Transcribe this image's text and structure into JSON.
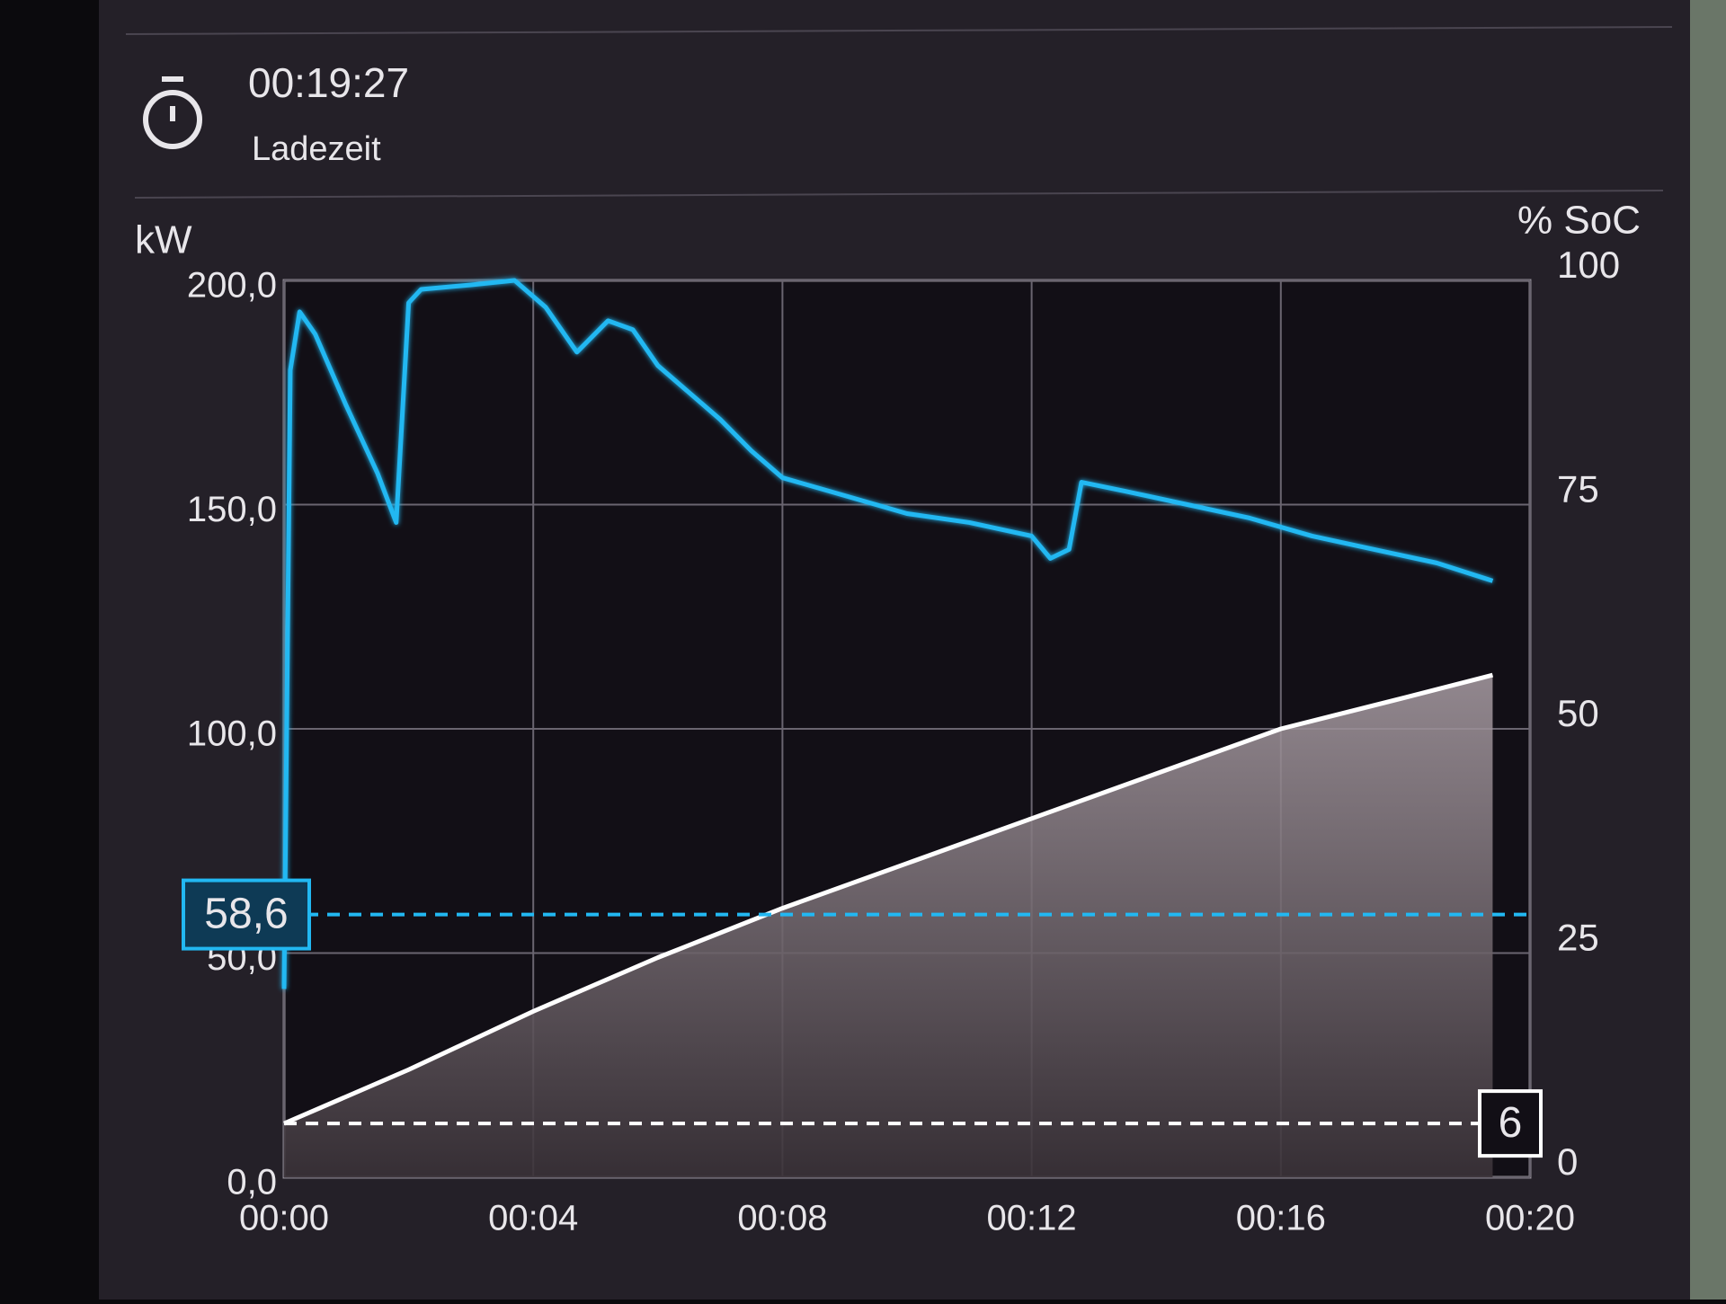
{
  "header": {
    "time": "00:19:27",
    "time_label": "Ladezeit"
  },
  "chart_data": {
    "type": "line",
    "ylabel": "kW",
    "y2label": "% SoC",
    "xlim": [
      0,
      20
    ],
    "xticks": [
      {
        "value": 0,
        "label": "00:00"
      },
      {
        "value": 4,
        "label": "00:04"
      },
      {
        "value": 8,
        "label": "00:08"
      },
      {
        "value": 12,
        "label": "00:12"
      },
      {
        "value": 16,
        "label": "00:16"
      },
      {
        "value": 20,
        "label": "00:20"
      }
    ],
    "ylim": [
      0,
      200
    ],
    "yticks": [
      {
        "value": 0,
        "label": "0,0"
      },
      {
        "value": 50,
        "label": "50,0"
      },
      {
        "value": 100,
        "label": "100,0"
      },
      {
        "value": 150,
        "label": "150,0"
      },
      {
        "value": 200,
        "label": "200,0"
      }
    ],
    "y2lim": [
      0,
      100
    ],
    "y2ticks": [
      0,
      25,
      50,
      75,
      100
    ],
    "grid": true,
    "series": [
      {
        "color": "#22b8f2",
        "x": [
          0,
          0.1,
          0.25,
          0.5,
          1,
          1.5,
          1.8,
          2,
          2.2,
          3,
          3.7,
          4.2,
          4.7,
          5.2,
          5.6,
          6,
          7,
          7.5,
          8,
          9,
          10,
          11,
          12,
          12.3,
          12.6,
          12.8,
          13.5,
          14.5,
          15.5,
          16.5,
          17.5,
          18.5,
          19.4
        ],
        "values": [
          42,
          180,
          193,
          188,
          172,
          157,
          146,
          195,
          198,
          199,
          200,
          194,
          184,
          191,
          189,
          181,
          169,
          162,
          156,
          152,
          148,
          146,
          143,
          138,
          140,
          155,
          153,
          150,
          147,
          143,
          140,
          137,
          133
        ]
      },
      {
        "color": "#ffffff",
        "axis": "y2",
        "fill": true,
        "x": [
          0,
          2,
          4,
          6,
          8,
          10,
          12,
          14,
          16,
          18,
          19.4
        ],
        "values": [
          6,
          12,
          18.5,
          24.5,
          30,
          35,
          40,
          45,
          50,
          53.5,
          56
        ]
      }
    ],
    "markers": [
      {
        "axis": "y",
        "value": 58.6,
        "label": "58,6",
        "color": "#22b8f2"
      },
      {
        "axis": "y2",
        "value": 6,
        "color": "#ffffff"
      }
    ]
  }
}
